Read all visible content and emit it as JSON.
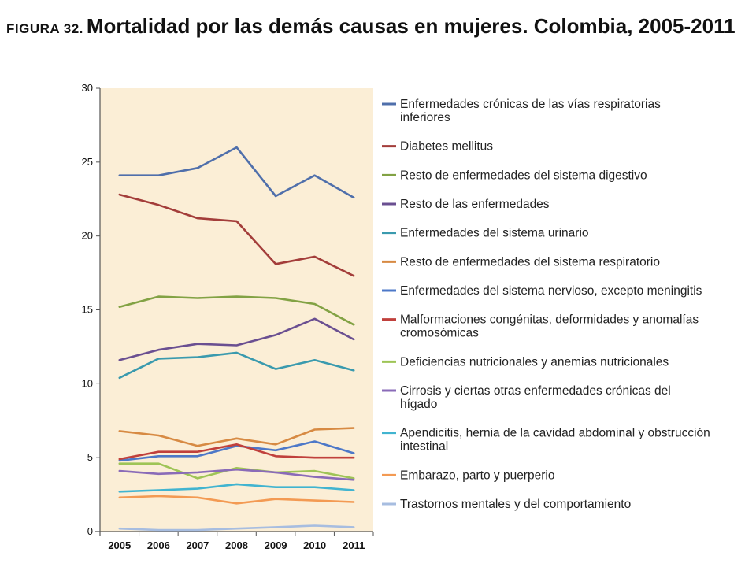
{
  "header": {
    "figure_label": "FIGURA 32.",
    "title": "Mortalidad por las demás causas en mujeres. Colombia, 2005-2011"
  },
  "chart_data": {
    "type": "line",
    "x": [
      "2005",
      "2006",
      "2007",
      "2008",
      "2009",
      "2010",
      "2011"
    ],
    "y_ticks": [
      "0",
      "5",
      "10",
      "15",
      "20",
      "25",
      "30"
    ],
    "ylim": [
      0,
      30
    ],
    "plot_background": "#fbeed6",
    "grid": false,
    "legend_position": "right",
    "series": [
      {
        "name": "Enfermedades crónicas de las vías respiratorias inferiores",
        "color": "#4f6fab",
        "values": [
          24.1,
          24.1,
          24.6,
          26.0,
          22.7,
          24.1,
          22.6
        ]
      },
      {
        "name": "Diabetes mellitus",
        "color": "#a33d3a",
        "values": [
          22.8,
          22.1,
          21.2,
          21.0,
          18.1,
          18.6,
          17.3
        ]
      },
      {
        "name": "Resto de enfermedades del sistema digestivo",
        "color": "#82a244",
        "values": [
          15.2,
          15.9,
          15.8,
          15.9,
          15.8,
          15.4,
          14.0
        ]
      },
      {
        "name": "Resto de las enfermedades",
        "color": "#6a4f91",
        "values": [
          11.6,
          12.3,
          12.7,
          12.6,
          13.3,
          14.4,
          13.0
        ]
      },
      {
        "name": "Enfermedades del sistema urinario",
        "color": "#3a9aae",
        "values": [
          10.4,
          11.7,
          11.8,
          12.1,
          11.0,
          11.6,
          10.9
        ]
      },
      {
        "name": "Resto de enfermedades del sistema respiratorio",
        "color": "#d78a43",
        "values": [
          6.8,
          6.5,
          5.8,
          6.3,
          5.9,
          6.9,
          7.0
        ]
      },
      {
        "name": "Enfermedades del sistema nervioso, excepto meningitis",
        "color": "#4d78c8",
        "values": [
          4.8,
          5.1,
          5.1,
          5.8,
          5.5,
          6.1,
          5.3
        ]
      },
      {
        "name": "Malformaciones congénitas, deformidades y anomalías cromosómicas",
        "color": "#c0403c",
        "values": [
          4.9,
          5.4,
          5.4,
          5.9,
          5.1,
          5.0,
          5.0
        ]
      },
      {
        "name": "Deficiencias nutricionales y anemias nutricionales",
        "color": "#9ec456",
        "values": [
          4.6,
          4.6,
          3.6,
          4.3,
          4.0,
          4.1,
          3.6
        ]
      },
      {
        "name": "Cirrosis y ciertas otras enfermedades crónicas del hígado",
        "color": "#8a6bb8",
        "values": [
          4.1,
          3.9,
          4.0,
          4.2,
          4.0,
          3.7,
          3.5
        ]
      },
      {
        "name": "Apendicitis, hernia de la cavidad abdominal y obstrucción intestinal",
        "color": "#41b4d0",
        "values": [
          2.7,
          2.8,
          2.9,
          3.2,
          3.0,
          3.0,
          2.8
        ]
      },
      {
        "name": "Embarazo, parto y puerperio",
        "color": "#f39a53",
        "values": [
          2.3,
          2.4,
          2.3,
          1.9,
          2.2,
          2.1,
          2.0
        ]
      },
      {
        "name": "Trastornos mentales y del comportamiento",
        "color": "#a7bde0",
        "values": [
          0.2,
          0.1,
          0.1,
          0.2,
          0.3,
          0.4,
          0.3
        ]
      }
    ]
  }
}
